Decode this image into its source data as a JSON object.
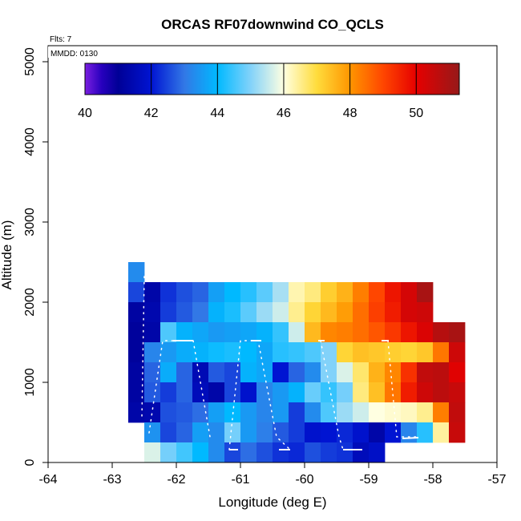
{
  "chart_data": {
    "type": "heatmap",
    "title": "ORCAS RF07downwind CO_QCLS",
    "annotations": {
      "flights": "Flts: 7",
      "date": "MMDD: 0130"
    },
    "xlabel": "Longitude (deg E)",
    "ylabel": "Altitude (m)",
    "xlim": [
      -64,
      -57
    ],
    "ylim": [
      0,
      5200
    ],
    "xticks": [
      -64,
      -63,
      -62,
      -61,
      -60,
      -59,
      -58,
      -57
    ],
    "xtick_labels": [
      "-64",
      "-63",
      "-62",
      "-61",
      "-60",
      "-59",
      "-58",
      "-57"
    ],
    "yticks": [
      0,
      1000,
      2000,
      3000,
      4000,
      5000
    ],
    "ytick_labels": [
      "0",
      "1000",
      "2000",
      "3000",
      "4000",
      "5000"
    ],
    "colorbar": {
      "min": 40,
      "max": 51.3,
      "ticks": [
        40,
        42,
        44,
        46,
        48,
        50
      ],
      "tick_labels": [
        "40",
        "42",
        "44",
        "46",
        "48",
        "50"
      ]
    },
    "cell_width_deg": 0.25,
    "cell_height_m": 250,
    "cells": [
      {
        "lon0": -62.75,
        "alt0": 2250,
        "vals": [
          43.3
        ]
      },
      {
        "lon0": -62.75,
        "alt0": 2000,
        "vals": [
          42.5,
          41.3,
          42.3,
          42.6,
          42.8,
          43.6,
          44.0,
          44.3,
          44.7,
          45.3,
          46.3,
          46.6,
          47.2,
          47.6,
          48.3,
          49.0,
          49.7,
          50.3,
          51.0
        ]
      },
      {
        "lon0": -62.75,
        "alt0": 1750,
        "vals": [
          41.2,
          41.4,
          42.4,
          42.7,
          43.0,
          43.9,
          44.2,
          44.7,
          45.2,
          45.6,
          46.5,
          47.1,
          47.5,
          47.9,
          48.5,
          49.1,
          49.6,
          50.3,
          50.4
        ]
      },
      {
        "lon0": -62.75,
        "alt0": 1500,
        "vals": [
          41.1,
          41.3,
          44.6,
          43.9,
          43.7,
          43.5,
          43.6,
          43.7,
          43.9,
          44.4,
          45.6,
          47.5,
          48.2,
          48.3,
          48.5,
          48.8,
          49.2,
          49.7,
          50.2,
          50.8,
          51.0
        ]
      },
      {
        "lon0": -62.75,
        "alt0": 1250,
        "vals": [
          41.1,
          43.2,
          43.5,
          43.8,
          43.9,
          44.1,
          44.2,
          44.0,
          43.7,
          44.3,
          44.4,
          44.6,
          45.0,
          47.1,
          47.4,
          47.3,
          47.2,
          47.1,
          47.3,
          48.4,
          50.4
        ]
      },
      {
        "lon0": -62.75,
        "alt0": 1000,
        "vals": [
          41.2,
          42.8,
          43.8,
          42.8,
          41.5,
          42.7,
          42.5,
          43.9,
          43.7,
          42.0,
          42.8,
          43.3,
          45.0,
          45.7,
          46.7,
          47.6,
          48.2,
          49.3,
          50.6,
          50.7,
          50.1
        ]
      },
      {
        "lon0": -62.75,
        "alt0": 750,
        "vals": [
          41.2,
          42.7,
          42.4,
          42.8,
          41.6,
          41.3,
          42.5,
          41.9,
          43.2,
          43.5,
          43.9,
          44.8,
          44.4,
          44.9,
          46.6,
          47.4,
          48.4,
          49.6,
          50.4,
          50.7,
          50.5
        ]
      },
      {
        "lon0": -62.75,
        "alt0": 500,
        "vals": [
          41.3,
          41.4,
          42.6,
          42.7,
          42.9,
          43.6,
          44.0,
          43.5,
          43.2,
          43.5,
          42.4,
          43.3,
          44.6,
          45.2,
          45.6,
          46.0,
          46.1,
          46.2,
          46.5,
          48.3,
          50.6
        ]
      },
      {
        "lon0": -62.5,
        "alt0": 250,
        "vals": [
          43.4,
          42.5,
          42.8,
          43.6,
          43.3,
          44.9,
          43.5,
          43.1,
          42.7,
          42.4,
          41.9,
          42.0,
          42.2,
          41.9,
          41.3,
          42.0,
          43.2,
          44.3,
          46.4,
          50.5
        ]
      },
      {
        "lon0": -62.5,
        "alt0": 0,
        "vals": [
          45.7,
          44.9,
          44.5,
          44.0,
          43.3,
          42.5,
          42.9,
          42.6,
          42.3,
          42.2,
          42.6,
          42.4,
          42.3,
          41.6,
          41.8
        ]
      }
    ]
  }
}
